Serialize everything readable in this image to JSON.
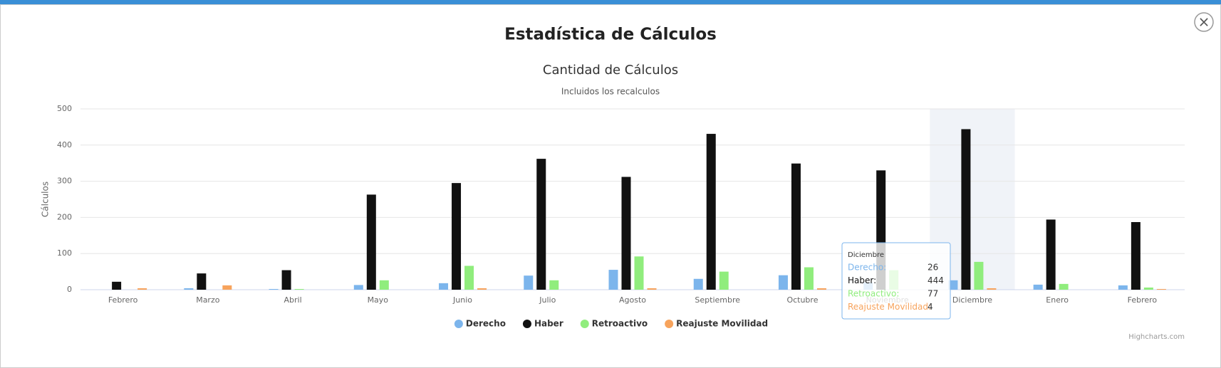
{
  "modal": {
    "title": "Estadística de Cálculos",
    "close": "×"
  },
  "chart_data": {
    "type": "bar",
    "title": "Cantidad de Cálculos",
    "subtitle": "Incluidos los recalculos",
    "y_label": "Cálculos",
    "categories": [
      "Febrero",
      "Marzo",
      "Abril",
      "Mayo",
      "Junio",
      "Julio",
      "Agosto",
      "Septiembre",
      "Octubre",
      "Noviembre",
      "Diciembre",
      "Enero",
      "Febrero"
    ],
    "series": [
      {
        "name": "Derecho",
        "color": "#7cb5ec",
        "values": [
          0,
          4,
          2,
          13,
          18,
          39,
          55,
          30,
          40,
          20,
          26,
          14,
          12
        ]
      },
      {
        "name": "Haber",
        "color": "#111111",
        "values": [
          22,
          45,
          54,
          263,
          295,
          362,
          312,
          431,
          349,
          330,
          444,
          194,
          187
        ]
      },
      {
        "name": "Retroactivo",
        "color": "#90ed7d",
        "values": [
          0,
          0,
          2,
          26,
          66,
          26,
          92,
          50,
          62,
          54,
          77,
          16,
          6
        ]
      },
      {
        "name": "Reajuste Movilidad",
        "color": "#f7a35c",
        "values": [
          4,
          12,
          0,
          0,
          4,
          0,
          4,
          0,
          4,
          0,
          4,
          0,
          2
        ]
      }
    ],
    "ylim": [
      0,
      500
    ],
    "yticks": [
      0,
      100,
      200,
      300,
      400,
      500
    ],
    "grid": true,
    "legend": "bottom",
    "tooltip": {
      "category": "Diciembre",
      "labels": [
        "Derecho:",
        "Haber:",
        "Retroactivo:",
        "Reajuste Movilidad:"
      ]
    },
    "credits": "Highcharts.com"
  }
}
